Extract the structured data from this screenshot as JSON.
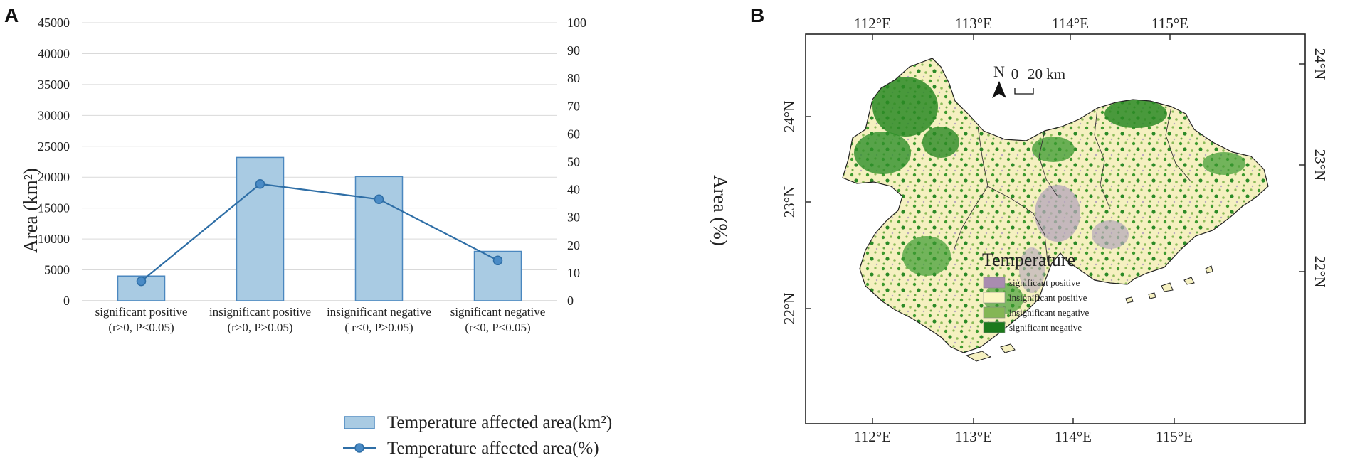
{
  "panels": {
    "a_letter": "A",
    "b_letter": "B"
  },
  "chart_data": {
    "type": "bar",
    "categories": [
      "significant positive",
      "insignificant positive",
      "insignificant negative",
      "significant negative"
    ],
    "category_conditions": [
      "(r>0, P<0.05)",
      "(r>0, P≥0.05)",
      "( r<0, P≥0.05)",
      "(r<0, P<0.05)"
    ],
    "series": [
      {
        "name": "Temperature affected area(km²)",
        "kind": "bar",
        "axis": "left",
        "values": [
          4000,
          23200,
          20100,
          8000
        ]
      },
      {
        "name": "Temperature affected area(%)",
        "kind": "line",
        "axis": "right",
        "values": [
          7,
          42,
          36.5,
          14.5
        ]
      }
    ],
    "ylabel_left": "Area (km²)",
    "ylabel_right": "Area (%)",
    "ylim_left": [
      0,
      45000
    ],
    "ylim_right": [
      0,
      100
    ],
    "yticks_left": [
      "0",
      "5000",
      "10000",
      "15000",
      "20000",
      "25000",
      "30000",
      "35000",
      "40000",
      "45000"
    ],
    "yticks_right": [
      "0",
      "10",
      "20",
      "30",
      "40",
      "50",
      "60",
      "70",
      "80",
      "90",
      "100"
    ],
    "legend": [
      "Temperature affected area(km²)",
      "Temperature affected area(%)"
    ],
    "colors": {
      "bar_fill": "#a9cbe3",
      "bar_edge": "#4a87bf",
      "line": "#2e6ea6",
      "marker": "#4a8bc6",
      "grid": "#d9d9d9"
    }
  },
  "map": {
    "top_ticks": [
      "112°E",
      "113°E",
      "114°E",
      "115°E"
    ],
    "bottom_ticks": [
      "112°E",
      "113°E",
      "114°E",
      "115°E"
    ],
    "left_ticks": [
      "24°N",
      "23°N",
      "22°N"
    ],
    "right_ticks": [
      "24°N",
      "23°N",
      "22°N"
    ],
    "north_label": "N",
    "scale_zero": "0",
    "scale_label": "20 km",
    "legend_title": "Temperature",
    "legend_items": [
      {
        "label": "significant positive",
        "color": "#a98cb0"
      },
      {
        "label": "insignificant positive",
        "color": "#fbf6c2"
      },
      {
        "label": "insignificant negative",
        "color": "#84b655"
      },
      {
        "label": "significant negative",
        "color": "#1c7a1c"
      }
    ]
  }
}
